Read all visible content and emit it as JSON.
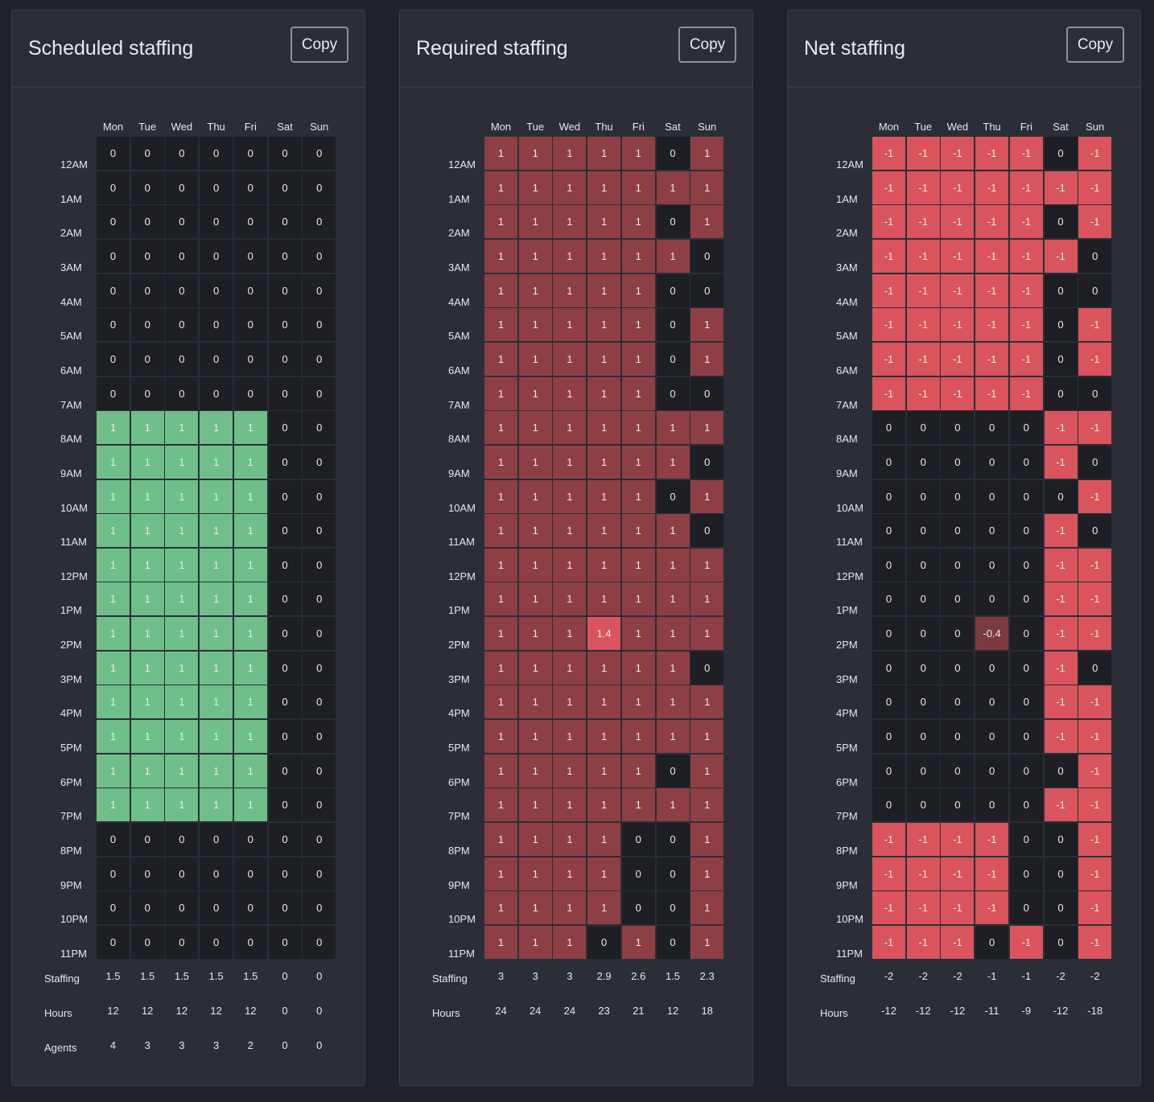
{
  "days": [
    "Mon",
    "Tue",
    "Wed",
    "Thu",
    "Fri",
    "Sat",
    "Sun"
  ],
  "hours": [
    "12AM",
    "1AM",
    "2AM",
    "3AM",
    "4AM",
    "5AM",
    "6AM",
    "7AM",
    "8AM",
    "9AM",
    "10AM",
    "11AM",
    "12PM",
    "1PM",
    "2PM",
    "3PM",
    "4PM",
    "5PM",
    "6PM",
    "7PM",
    "8PM",
    "9PM",
    "10PM",
    "11PM"
  ],
  "colors": {
    "zero": "#1d1f25",
    "scheduled_positive": "#6fbf8a",
    "required_positive": "#8e3f45",
    "required_high": "#d9545d",
    "net_negative": "#d9545d",
    "net_partial": "#7a3a40"
  },
  "panels": [
    {
      "title": "Scheduled staffing",
      "copy_label": "Copy",
      "kind": "scheduled",
      "grid": [
        [
          "0",
          "0",
          "0",
          "0",
          "0",
          "0",
          "0"
        ],
        [
          "0",
          "0",
          "0",
          "0",
          "0",
          "0",
          "0"
        ],
        [
          "0",
          "0",
          "0",
          "0",
          "0",
          "0",
          "0"
        ],
        [
          "0",
          "0",
          "0",
          "0",
          "0",
          "0",
          "0"
        ],
        [
          "0",
          "0",
          "0",
          "0",
          "0",
          "0",
          "0"
        ],
        [
          "0",
          "0",
          "0",
          "0",
          "0",
          "0",
          "0"
        ],
        [
          "0",
          "0",
          "0",
          "0",
          "0",
          "0",
          "0"
        ],
        [
          "0",
          "0",
          "0",
          "0",
          "0",
          "0",
          "0"
        ],
        [
          "1",
          "1",
          "1",
          "1",
          "1",
          "0",
          "0"
        ],
        [
          "1",
          "1",
          "1",
          "1",
          "1",
          "0",
          "0"
        ],
        [
          "1",
          "1",
          "1",
          "1",
          "1",
          "0",
          "0"
        ],
        [
          "1",
          "1",
          "1",
          "1",
          "1",
          "0",
          "0"
        ],
        [
          "1",
          "1",
          "1",
          "1",
          "1",
          "0",
          "0"
        ],
        [
          "1",
          "1",
          "1",
          "1",
          "1",
          "0",
          "0"
        ],
        [
          "1",
          "1",
          "1",
          "1",
          "1",
          "0",
          "0"
        ],
        [
          "1",
          "1",
          "1",
          "1",
          "1",
          "0",
          "0"
        ],
        [
          "1",
          "1",
          "1",
          "1",
          "1",
          "0",
          "0"
        ],
        [
          "1",
          "1",
          "1",
          "1",
          "1",
          "0",
          "0"
        ],
        [
          "1",
          "1",
          "1",
          "1",
          "1",
          "0",
          "0"
        ],
        [
          "1",
          "1",
          "1",
          "1",
          "1",
          "0",
          "0"
        ],
        [
          "0",
          "0",
          "0",
          "0",
          "0",
          "0",
          "0"
        ],
        [
          "0",
          "0",
          "0",
          "0",
          "0",
          "0",
          "0"
        ],
        [
          "0",
          "0",
          "0",
          "0",
          "0",
          "0",
          "0"
        ],
        [
          "0",
          "0",
          "0",
          "0",
          "0",
          "0",
          "0"
        ]
      ],
      "footer": [
        {
          "label": "Staffing",
          "values": [
            "1.5",
            "1.5",
            "1.5",
            "1.5",
            "1.5",
            "0",
            "0"
          ]
        },
        {
          "label": "Hours",
          "values": [
            "12",
            "12",
            "12",
            "12",
            "12",
            "0",
            "0"
          ]
        },
        {
          "label": "Agents",
          "values": [
            "4",
            "3",
            "3",
            "3",
            "2",
            "0",
            "0"
          ]
        }
      ]
    },
    {
      "title": "Required staffing",
      "copy_label": "Copy",
      "kind": "required",
      "grid": [
        [
          "1",
          "1",
          "1",
          "1",
          "1",
          "0",
          "1"
        ],
        [
          "1",
          "1",
          "1",
          "1",
          "1",
          "1",
          "1"
        ],
        [
          "1",
          "1",
          "1",
          "1",
          "1",
          "0",
          "1"
        ],
        [
          "1",
          "1",
          "1",
          "1",
          "1",
          "1",
          "0"
        ],
        [
          "1",
          "1",
          "1",
          "1",
          "1",
          "0",
          "0"
        ],
        [
          "1",
          "1",
          "1",
          "1",
          "1",
          "0",
          "1"
        ],
        [
          "1",
          "1",
          "1",
          "1",
          "1",
          "0",
          "1"
        ],
        [
          "1",
          "1",
          "1",
          "1",
          "1",
          "0",
          "0"
        ],
        [
          "1",
          "1",
          "1",
          "1",
          "1",
          "1",
          "1"
        ],
        [
          "1",
          "1",
          "1",
          "1",
          "1",
          "1",
          "0"
        ],
        [
          "1",
          "1",
          "1",
          "1",
          "1",
          "0",
          "1"
        ],
        [
          "1",
          "1",
          "1",
          "1",
          "1",
          "1",
          "0"
        ],
        [
          "1",
          "1",
          "1",
          "1",
          "1",
          "1",
          "1"
        ],
        [
          "1",
          "1",
          "1",
          "1",
          "1",
          "1",
          "1"
        ],
        [
          "1",
          "1",
          "1",
          "1.4",
          "1",
          "1",
          "1"
        ],
        [
          "1",
          "1",
          "1",
          "1",
          "1",
          "1",
          "0"
        ],
        [
          "1",
          "1",
          "1",
          "1",
          "1",
          "1",
          "1"
        ],
        [
          "1",
          "1",
          "1",
          "1",
          "1",
          "1",
          "1"
        ],
        [
          "1",
          "1",
          "1",
          "1",
          "1",
          "0",
          "1"
        ],
        [
          "1",
          "1",
          "1",
          "1",
          "1",
          "1",
          "1"
        ],
        [
          "1",
          "1",
          "1",
          "1",
          "0",
          "0",
          "1"
        ],
        [
          "1",
          "1",
          "1",
          "1",
          "0",
          "0",
          "1"
        ],
        [
          "1",
          "1",
          "1",
          "1",
          "0",
          "0",
          "1"
        ],
        [
          "1",
          "1",
          "1",
          "0",
          "1",
          "0",
          "1"
        ]
      ],
      "footer": [
        {
          "label": "Staffing",
          "values": [
            "3",
            "3",
            "3",
            "2.9",
            "2.6",
            "1.5",
            "2.3"
          ]
        },
        {
          "label": "Hours",
          "values": [
            "24",
            "24",
            "24",
            "23",
            "21",
            "12",
            "18"
          ]
        }
      ]
    },
    {
      "title": "Net staffing",
      "copy_label": "Copy",
      "kind": "net",
      "grid": [
        [
          "-1",
          "-1",
          "-1",
          "-1",
          "-1",
          "0",
          "-1"
        ],
        [
          "-1",
          "-1",
          "-1",
          "-1",
          "-1",
          "-1",
          "-1"
        ],
        [
          "-1",
          "-1",
          "-1",
          "-1",
          "-1",
          "0",
          "-1"
        ],
        [
          "-1",
          "-1",
          "-1",
          "-1",
          "-1",
          "-1",
          "0"
        ],
        [
          "-1",
          "-1",
          "-1",
          "-1",
          "-1",
          "0",
          "0"
        ],
        [
          "-1",
          "-1",
          "-1",
          "-1",
          "-1",
          "0",
          "-1"
        ],
        [
          "-1",
          "-1",
          "-1",
          "-1",
          "-1",
          "0",
          "-1"
        ],
        [
          "-1",
          "-1",
          "-1",
          "-1",
          "-1",
          "0",
          "0"
        ],
        [
          "0",
          "0",
          "0",
          "0",
          "0",
          "-1",
          "-1"
        ],
        [
          "0",
          "0",
          "0",
          "0",
          "0",
          "-1",
          "0"
        ],
        [
          "0",
          "0",
          "0",
          "0",
          "0",
          "0",
          "-1"
        ],
        [
          "0",
          "0",
          "0",
          "0",
          "0",
          "-1",
          "0"
        ],
        [
          "0",
          "0",
          "0",
          "0",
          "0",
          "-1",
          "-1"
        ],
        [
          "0",
          "0",
          "0",
          "0",
          "0",
          "-1",
          "-1"
        ],
        [
          "0",
          "0",
          "0",
          "-0.4",
          "0",
          "-1",
          "-1"
        ],
        [
          "0",
          "0",
          "0",
          "0",
          "0",
          "-1",
          "0"
        ],
        [
          "0",
          "0",
          "0",
          "0",
          "0",
          "-1",
          "-1"
        ],
        [
          "0",
          "0",
          "0",
          "0",
          "0",
          "-1",
          "-1"
        ],
        [
          "0",
          "0",
          "0",
          "0",
          "0",
          "0",
          "-1"
        ],
        [
          "0",
          "0",
          "0",
          "0",
          "0",
          "-1",
          "-1"
        ],
        [
          "-1",
          "-1",
          "-1",
          "-1",
          "0",
          "0",
          "-1"
        ],
        [
          "-1",
          "-1",
          "-1",
          "-1",
          "0",
          "0",
          "-1"
        ],
        [
          "-1",
          "-1",
          "-1",
          "-1",
          "0",
          "0",
          "-1"
        ],
        [
          "-1",
          "-1",
          "-1",
          "0",
          "-1",
          "0",
          "-1"
        ]
      ],
      "footer": [
        {
          "label": "Staffing",
          "values": [
            "-2",
            "-2",
            "-2",
            "-1",
            "-1",
            "-2",
            "-2"
          ]
        },
        {
          "label": "Hours",
          "values": [
            "-12",
            "-12",
            "-12",
            "-11",
            "-9",
            "-12",
            "-18"
          ]
        }
      ]
    }
  ]
}
